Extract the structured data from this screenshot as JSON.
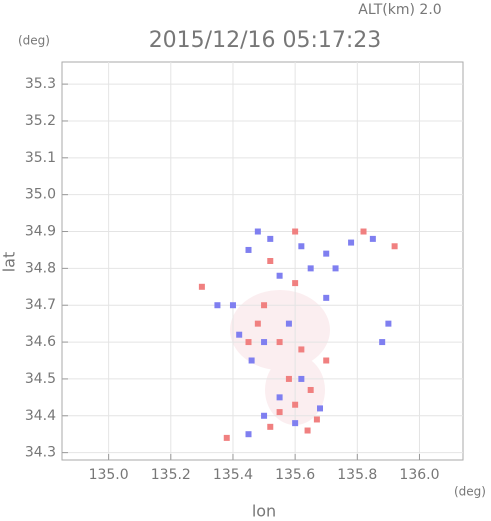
{
  "chart_data": {
    "type": "scatter",
    "title": "2015/12/16 05:17:23",
    "annotation": "ALT(km) 2.0",
    "y_unit": "(deg)",
    "x_unit": "(deg)",
    "x_label": "lon",
    "y_label": "lat",
    "xlim": [
      134.85,
      136.14
    ],
    "ylim": [
      34.28,
      35.36
    ],
    "xticks": [
      {
        "value": 135.0,
        "label": "135.0"
      },
      135.2,
      135.4,
      135.6,
      135.8,
      {
        "value": 136.0,
        "label": "136.0"
      }
    ],
    "yticks": [
      34.3,
      34.4,
      34.5,
      34.6,
      34.7,
      34.8,
      34.9,
      {
        "value": 35.0,
        "label": "35.0"
      },
      35.1,
      35.2,
      35.3
    ],
    "grid": true,
    "series": [
      {
        "color": "#7f7ff0",
        "x": [
          135.48,
          135.52,
          135.45,
          135.62,
          135.7,
          135.78,
          135.85,
          135.55,
          135.65,
          135.73,
          135.4,
          135.42,
          135.5,
          135.58,
          135.46,
          135.62,
          135.55,
          135.68,
          135.5,
          135.6,
          135.45,
          135.9,
          135.88,
          135.7,
          135.35
        ],
        "y": [
          34.9,
          34.88,
          34.85,
          34.86,
          34.84,
          34.87,
          34.88,
          34.78,
          34.8,
          34.8,
          34.7,
          34.62,
          34.6,
          34.65,
          34.55,
          34.5,
          34.45,
          34.42,
          34.4,
          34.38,
          34.35,
          34.65,
          34.6,
          34.72,
          34.7
        ]
      },
      {
        "color": "#f08080",
        "x": [
          135.6,
          135.82,
          135.92,
          135.3,
          135.52,
          135.6,
          135.48,
          135.55,
          135.62,
          135.58,
          135.65,
          135.6,
          135.67,
          135.55,
          135.52,
          135.64,
          135.38,
          135.7,
          135.5,
          135.45
        ],
        "y": [
          34.9,
          34.9,
          34.86,
          34.75,
          34.82,
          34.76,
          34.65,
          34.6,
          34.58,
          34.5,
          34.47,
          34.43,
          34.39,
          34.41,
          34.37,
          34.36,
          34.34,
          34.55,
          34.7,
          34.6
        ]
      }
    ]
  }
}
